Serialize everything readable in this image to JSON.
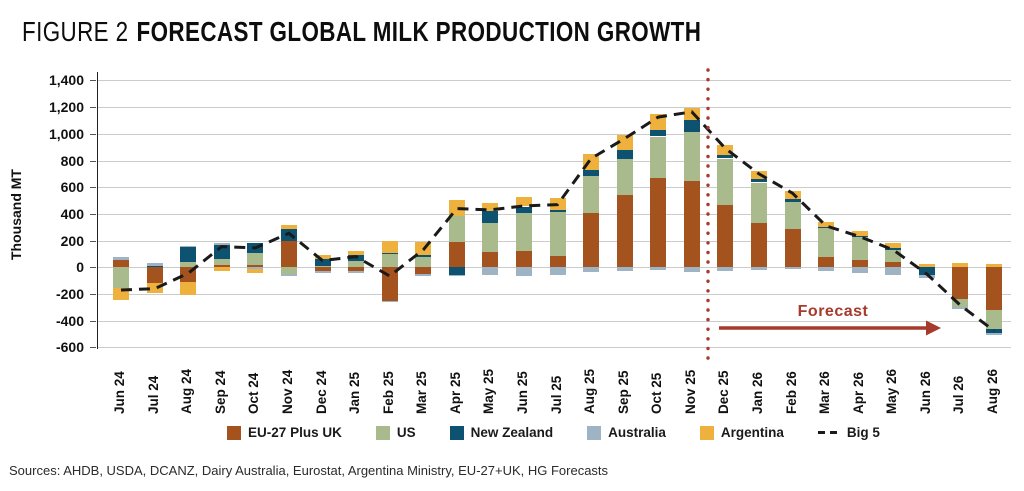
{
  "figure": {
    "title_prefix": "FIGURE 2",
    "title_main": "FORECAST GLOBAL MILK PRODUCTION GROWTH",
    "forecast_label": "Forecast",
    "sources": "Sources: AHDB, USDA, DCANZ, Dairy Australia, Eurostat, Argentina Ministry, EU-27+UK, HG Forecasts"
  },
  "colors": {
    "eu": "#A4531E",
    "us": "#A9BB8D",
    "nz": "#0E5271",
    "aus": "#9EB3C4",
    "arg": "#EFB13E",
    "big5_line": "#1A1A1A",
    "forecast_red": "#A63A2C",
    "grid": "#CBCBCB",
    "axis": "#222222"
  },
  "chart_data": {
    "type": "bar",
    "stacked": true,
    "title": "FIGURE 2 FORECAST GLOBAL MILK PRODUCTION GROWTH",
    "xlabel": "",
    "ylabel": "Thousand MT",
    "ylim": [
      -600,
      1400
    ],
    "grid": true,
    "legend_position": "bottom",
    "ytick_values": [
      1400,
      1200,
      1000,
      800,
      600,
      400,
      200,
      0,
      -200,
      -400,
      -600
    ],
    "ytick_labels": [
      "1,400",
      "1,200",
      "1,000",
      "800",
      "600",
      "400",
      "200",
      "0",
      "-200",
      "-400",
      "-600"
    ],
    "categories": [
      "Jun 24",
      "Jul 24",
      "Aug 24",
      "Sep 24",
      "Oct 24",
      "Nov 24",
      "Dec 24",
      "Jan 25",
      "Feb 25",
      "Mar 25",
      "Apr 25",
      "May 25",
      "Jun 25",
      "Jul 25",
      "Aug 25",
      "Sep 25",
      "Oct 25",
      "Nov 25",
      "Dec 25",
      "Jan 26",
      "Feb 26",
      "Mar 26",
      "Apr 26",
      "May 26",
      "Jun 26",
      "Jul 26",
      "Aug 26"
    ],
    "series": [
      {
        "name": "EU-27 Plus UK",
        "color": "#A4531E",
        "values": [
          55,
          -115,
          -110,
          15,
          15,
          200,
          -25,
          -25,
          -255,
          -50,
          190,
          115,
          120,
          85,
          410,
          540,
          670,
          645,
          465,
          330,
          290,
          75,
          55,
          42,
          0,
          -240,
          -320
        ]
      },
      {
        "name": "US",
        "color": "#A9BB8D",
        "values": [
          -155,
          -5,
          40,
          45,
          90,
          -50,
          10,
          50,
          105,
          75,
          195,
          215,
          290,
          330,
          275,
          270,
          310,
          370,
          350,
          305,
          200,
          218,
          170,
          88,
          0,
          -60,
          -140
        ]
      },
      {
        "name": "New Zealand",
        "color": "#0E5271",
        "values": [
          0,
          8,
          110,
          110,
          80,
          85,
          50,
          45,
          5,
          18,
          -55,
          95,
          45,
          18,
          45,
          70,
          50,
          88,
          25,
          25,
          20,
          10,
          10,
          18,
          -60,
          0,
          -30
        ]
      },
      {
        "name": "Australia",
        "color": "#9EB3C4",
        "values": [
          22,
          25,
          10,
          10,
          -15,
          -12,
          -15,
          -20,
          -8,
          -15,
          -8,
          -55,
          -65,
          -55,
          -33,
          -28,
          -20,
          -32,
          -25,
          -20,
          -15,
          -30,
          -45,
          -55,
          -20,
          -15,
          -15
        ]
      },
      {
        "name": "Argentina",
        "color": "#EFB13E",
        "values": [
          -90,
          -75,
          -95,
          -25,
          -25,
          30,
          30,
          30,
          90,
          100,
          120,
          60,
          70,
          90,
          120,
          112,
          117,
          92,
          75,
          60,
          60,
          35,
          40,
          35,
          28,
          32,
          28
        ]
      }
    ],
    "line_series": {
      "name": "Big 5",
      "color": "#1A1A1A",
      "style": "dashed",
      "values": [
        -170,
        -160,
        -45,
        155,
        145,
        255,
        50,
        80,
        -65,
        130,
        440,
        430,
        460,
        470,
        815,
        965,
        1125,
        1165,
        890,
        700,
        555,
        310,
        230,
        130,
        -50,
        -285,
        -475
      ]
    },
    "forecast_divider_after_category": "Nov 25",
    "annotations": [
      {
        "text": "Forecast",
        "color": "#A63A2C",
        "arrow": "right"
      }
    ]
  }
}
